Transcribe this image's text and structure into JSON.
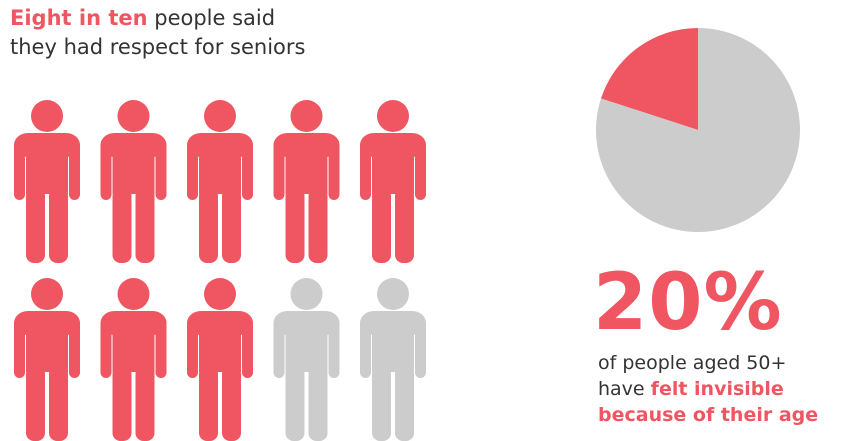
{
  "headline": {
    "highlight": "Eight in ten",
    "rest_line1": " people said",
    "line2": "they had respect for seniors"
  },
  "stat": {
    "value": "20%",
    "caption_line1": "of people aged 50+",
    "caption_line2_prefix": "have ",
    "caption_line2_highlight": "felt invisible",
    "caption_line3_highlight": "because of their age"
  },
  "colors": {
    "accent": "#ef5662",
    "neutral": "#cccccc",
    "text": "#333333"
  },
  "chart_data": [
    {
      "type": "pictogram",
      "total": 10,
      "highlighted": 8,
      "fraction": 0.8
    },
    {
      "type": "pie",
      "slices": [
        {
          "value": 20,
          "color": "#ef5662"
        },
        {
          "value": 80,
          "color": "#cccccc"
        }
      ]
    }
  ]
}
